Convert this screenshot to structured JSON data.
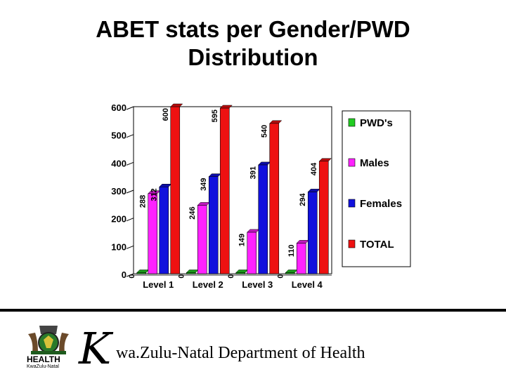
{
  "title_line1": "ABET stats per Gender/PWD",
  "title_line2": "Distribution",
  "chart_data": {
    "type": "bar",
    "categories": [
      "Level 1",
      "Level 2",
      "Level 3",
      "Level 4"
    ],
    "series": [
      {
        "name": "PWD's",
        "color": "#22cc22",
        "values": [
          0,
          0,
          0,
          0
        ]
      },
      {
        "name": "Males",
        "color": "#ff22ff",
        "values": [
          288,
          246,
          149,
          110
        ]
      },
      {
        "name": "Females",
        "color": "#1111dd",
        "values": [
          312,
          349,
          391,
          294
        ]
      },
      {
        "name": "TOTAL",
        "color": "#ee1111",
        "values": [
          600,
          595,
          540,
          404
        ]
      }
    ],
    "ylim": [
      0,
      600
    ],
    "yticks": [
      0,
      100,
      200,
      300,
      400,
      500,
      600
    ],
    "legend_position": "right"
  },
  "footer": {
    "logo_text": "HEALTH",
    "logo_subtext": "KwaZulu-Natal",
    "dept_initial": "K",
    "dept_name": "wa.Zulu-Natal Department of Health"
  }
}
